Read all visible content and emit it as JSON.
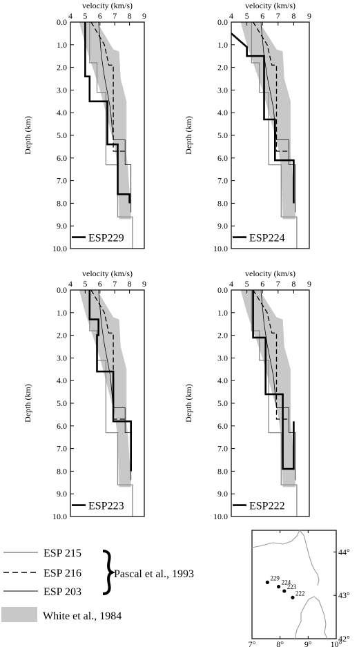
{
  "chart_data": [
    {
      "type": "line",
      "station": "ESP229",
      "xlabel": "velocity (km/s)",
      "ylabel": "Depth (km)",
      "xlim": [
        4,
        9
      ],
      "ylim": [
        0,
        10
      ],
      "x_ticks": [
        "4",
        "5",
        "6",
        "7",
        "8",
        "9"
      ],
      "y_ticks": [
        "0.0",
        "1.0",
        "2.0",
        "3.0",
        "4.0",
        "5.0",
        "6.0",
        "7.0",
        "8.0",
        "9.0",
        "10.0"
      ],
      "series": [
        {
          "name": "ESP229",
          "style": "thick",
          "points": [
            [
              5.0,
              0
            ],
            [
              5.0,
              2.4
            ],
            [
              5.3,
              2.4
            ],
            [
              5.3,
              3.5
            ],
            [
              6.5,
              3.5
            ],
            [
              6.5,
              5.4
            ],
            [
              7.2,
              5.4
            ],
            [
              7.2,
              7.6
            ],
            [
              8.0,
              7.6
            ],
            [
              8.0,
              8.0
            ]
          ]
        },
        {
          "name": "ESP 215",
          "style": "gray",
          "points": [
            [
              5.3,
              0
            ],
            [
              5.3,
              1.8
            ],
            [
              5.8,
              1.8
            ],
            [
              5.8,
              3.1
            ],
            [
              6.4,
              3.1
            ],
            [
              6.4,
              6.3
            ],
            [
              7.2,
              6.3
            ],
            [
              7.2,
              8.6
            ],
            [
              8.2,
              8.6
            ],
            [
              8.2,
              10
            ]
          ]
        },
        {
          "name": "ESP 216",
          "style": "dashed",
          "points": [
            [
              5.4,
              0
            ],
            [
              6.3,
              1.0
            ],
            [
              6.6,
              1.9
            ],
            [
              6.9,
              1.9
            ],
            [
              6.9,
              5.7
            ],
            [
              7.7,
              5.7
            ]
          ]
        },
        {
          "name": "ESP 203",
          "style": "thin",
          "points": [
            [
              5.9,
              0
            ],
            [
              6.1,
              1.5
            ],
            [
              6.3,
              2.4
            ],
            [
              6.7,
              3.8
            ],
            [
              6.9,
              5.2
            ],
            [
              7.7,
              5.2
            ],
            [
              7.7,
              6.3
            ],
            [
              8.1,
              6.3
            ],
            [
              8.1,
              8.4
            ]
          ]
        }
      ],
      "band": {
        "left": [
          [
            4.6,
            0
          ],
          [
            5.0,
            1.0
          ],
          [
            5.5,
            2.0
          ],
          [
            6.0,
            3.0
          ],
          [
            6.6,
            4.5
          ],
          [
            7.0,
            5.5
          ],
          [
            7.2,
            6.5
          ],
          [
            7.3,
            8.7
          ],
          [
            7.6,
            8.7
          ]
        ],
        "right": [
          [
            5.8,
            0
          ],
          [
            6.9,
            1.2
          ],
          [
            7.3,
            1.3
          ],
          [
            7.4,
            2.5
          ],
          [
            7.6,
            3.0
          ],
          [
            7.8,
            3.5
          ],
          [
            7.8,
            5.8
          ],
          [
            7.9,
            6.5
          ],
          [
            8.0,
            7.5
          ],
          [
            8.1,
            8.0
          ],
          [
            8.1,
            8.7
          ]
        ]
      }
    },
    {
      "type": "line",
      "station": "ESP224",
      "xlabel": "velocity (km/s)",
      "ylabel": "Depth (km)",
      "xlim": [
        4,
        9
      ],
      "ylim": [
        0,
        10
      ],
      "x_ticks": [
        "4",
        "5",
        "6",
        "7",
        "8",
        "9"
      ],
      "y_ticks": [
        "0.0",
        "1.0",
        "2.0",
        "3.0",
        "4.0",
        "5.0",
        "6.0",
        "7.0",
        "8.0",
        "9.0",
        "10.0"
      ],
      "series": [
        {
          "name": "ESP224",
          "style": "thick",
          "points": [
            [
              4.0,
              0.5
            ],
            [
              5.0,
              1.1
            ],
            [
              5.0,
              1.5
            ],
            [
              6.1,
              1.5
            ],
            [
              6.1,
              4.3
            ],
            [
              6.8,
              4.3
            ],
            [
              6.8,
              6.1
            ],
            [
              8.0,
              6.1
            ],
            [
              8.0,
              8.0
            ]
          ]
        },
        {
          "name": "ESP 215",
          "style": "gray",
          "points": [
            [
              5.3,
              0
            ],
            [
              5.3,
              1.8
            ],
            [
              5.8,
              1.8
            ],
            [
              5.8,
              3.1
            ],
            [
              6.4,
              3.1
            ],
            [
              6.4,
              6.3
            ],
            [
              7.2,
              6.3
            ],
            [
              7.2,
              8.6
            ],
            [
              8.2,
              8.6
            ],
            [
              8.2,
              10
            ]
          ]
        },
        {
          "name": "ESP 216",
          "style": "dashed",
          "points": [
            [
              5.4,
              0
            ],
            [
              6.3,
              1.0
            ],
            [
              6.6,
              1.9
            ],
            [
              6.9,
              1.9
            ],
            [
              6.9,
              5.7
            ],
            [
              7.7,
              5.7
            ]
          ]
        },
        {
          "name": "ESP 203",
          "style": "thin",
          "points": [
            [
              5.9,
              0
            ],
            [
              6.1,
              1.5
            ],
            [
              6.3,
              2.4
            ],
            [
              6.7,
              3.8
            ],
            [
              6.9,
              5.2
            ],
            [
              7.7,
              5.2
            ],
            [
              7.7,
              6.3
            ],
            [
              8.1,
              6.3
            ],
            [
              8.1,
              8.4
            ]
          ]
        }
      ],
      "band": {
        "left": [
          [
            4.6,
            0
          ],
          [
            5.0,
            1.0
          ],
          [
            5.5,
            2.0
          ],
          [
            6.0,
            3.0
          ],
          [
            6.6,
            4.5
          ],
          [
            7.0,
            5.5
          ],
          [
            7.2,
            6.5
          ],
          [
            7.3,
            8.7
          ],
          [
            7.6,
            8.7
          ]
        ],
        "right": [
          [
            5.8,
            0
          ],
          [
            6.9,
            1.2
          ],
          [
            7.3,
            1.3
          ],
          [
            7.4,
            2.5
          ],
          [
            7.6,
            3.0
          ],
          [
            7.8,
            3.5
          ],
          [
            7.8,
            5.8
          ],
          [
            7.9,
            6.5
          ],
          [
            8.0,
            7.5
          ],
          [
            8.1,
            8.0
          ],
          [
            8.1,
            8.7
          ]
        ]
      }
    },
    {
      "type": "line",
      "station": "ESP223",
      "xlabel": "velocity (km/s)",
      "ylabel": "Depth (km)",
      "xlim": [
        4,
        9
      ],
      "ylim": [
        0,
        10
      ],
      "x_ticks": [
        "4",
        "5",
        "6",
        "7",
        "8",
        "9"
      ],
      "y_ticks": [
        "0.0",
        "1.0",
        "2.0",
        "3.0",
        "4.0",
        "5.0",
        "6.0",
        "7.0",
        "8.0",
        "9.0",
        "10.0"
      ],
      "series": [
        {
          "name": "ESP223",
          "style": "thick",
          "points": [
            [
              5.3,
              0
            ],
            [
              5.3,
              1.3
            ],
            [
              5.9,
              1.3
            ],
            [
              5.9,
              2.0
            ],
            [
              5.8,
              2.0
            ],
            [
              5.8,
              3.6
            ],
            [
              6.9,
              3.6
            ],
            [
              6.9,
              5.8
            ],
            [
              8.1,
              5.8
            ],
            [
              8.1,
              8.0
            ]
          ]
        },
        {
          "name": "ESP 215",
          "style": "gray",
          "points": [
            [
              5.3,
              0
            ],
            [
              5.3,
              1.8
            ],
            [
              5.8,
              1.8
            ],
            [
              5.8,
              3.1
            ],
            [
              6.4,
              3.1
            ],
            [
              6.4,
              6.3
            ],
            [
              7.2,
              6.3
            ],
            [
              7.2,
              8.6
            ],
            [
              8.2,
              8.6
            ],
            [
              8.2,
              10
            ]
          ]
        },
        {
          "name": "ESP 216",
          "style": "dashed",
          "points": [
            [
              5.4,
              0
            ],
            [
              6.3,
              1.0
            ],
            [
              6.6,
              1.9
            ],
            [
              6.9,
              1.9
            ],
            [
              6.9,
              5.7
            ],
            [
              7.7,
              5.7
            ]
          ]
        },
        {
          "name": "ESP 203",
          "style": "thin",
          "points": [
            [
              5.9,
              0
            ],
            [
              6.1,
              1.5
            ],
            [
              6.3,
              2.4
            ],
            [
              6.7,
              3.8
            ],
            [
              6.9,
              5.2
            ],
            [
              7.7,
              5.2
            ],
            [
              7.7,
              6.3
            ],
            [
              8.1,
              6.3
            ],
            [
              8.1,
              8.4
            ]
          ]
        }
      ],
      "band": {
        "left": [
          [
            4.6,
            0
          ],
          [
            5.0,
            1.0
          ],
          [
            5.5,
            2.0
          ],
          [
            6.0,
            3.0
          ],
          [
            6.6,
            4.5
          ],
          [
            7.0,
            5.5
          ],
          [
            7.2,
            6.5
          ],
          [
            7.3,
            8.7
          ],
          [
            7.6,
            8.7
          ]
        ],
        "right": [
          [
            5.8,
            0
          ],
          [
            6.9,
            1.2
          ],
          [
            7.3,
            1.3
          ],
          [
            7.4,
            2.5
          ],
          [
            7.6,
            3.0
          ],
          [
            7.8,
            3.5
          ],
          [
            7.8,
            5.8
          ],
          [
            7.9,
            6.5
          ],
          [
            8.0,
            7.5
          ],
          [
            8.1,
            8.0
          ],
          [
            8.1,
            8.7
          ]
        ]
      }
    },
    {
      "type": "line",
      "station": "ESP222",
      "xlabel": "velocity (km/s)",
      "ylabel": "Depth (km)",
      "xlim": [
        4,
        9
      ],
      "ylim": [
        0,
        10
      ],
      "x_ticks": [
        "4",
        "5",
        "6",
        "7",
        "8",
        "9"
      ],
      "y_ticks": [
        "0.0",
        "1.0",
        "2.0",
        "3.0",
        "4.0",
        "5.0",
        "6.0",
        "7.0",
        "8.0",
        "9.0",
        "10.0"
      ],
      "series": [
        {
          "name": "ESP222",
          "style": "thick",
          "points": [
            [
              5.4,
              0
            ],
            [
              5.4,
              2.1
            ],
            [
              6.2,
              2.1
            ],
            [
              6.2,
              4.6
            ],
            [
              7.3,
              4.6
            ],
            [
              7.3,
              7.9
            ],
            [
              8.0,
              7.9
            ],
            [
              8.0,
              5.8
            ]
          ]
        },
        {
          "name": "ESP 215",
          "style": "gray",
          "points": [
            [
              5.3,
              0
            ],
            [
              5.3,
              1.8
            ],
            [
              5.8,
              1.8
            ],
            [
              5.8,
              3.1
            ],
            [
              6.4,
              3.1
            ],
            [
              6.4,
              6.3
            ],
            [
              7.2,
              6.3
            ],
            [
              7.2,
              8.6
            ],
            [
              8.2,
              8.6
            ],
            [
              8.2,
              10
            ]
          ]
        },
        {
          "name": "ESP 216",
          "style": "dashed",
          "points": [
            [
              5.4,
              0
            ],
            [
              6.3,
              1.0
            ],
            [
              6.6,
              1.9
            ],
            [
              6.9,
              1.9
            ],
            [
              6.9,
              5.7
            ],
            [
              7.7,
              5.7
            ]
          ]
        },
        {
          "name": "ESP 203",
          "style": "thin",
          "points": [
            [
              5.9,
              0
            ],
            [
              6.1,
              1.5
            ],
            [
              6.3,
              2.4
            ],
            [
              6.7,
              3.8
            ],
            [
              6.9,
              5.2
            ],
            [
              7.7,
              5.2
            ],
            [
              7.7,
              6.3
            ],
            [
              8.1,
              6.3
            ],
            [
              8.1,
              8.4
            ]
          ]
        }
      ],
      "band": {
        "left": [
          [
            4.6,
            0
          ],
          [
            5.0,
            1.0
          ],
          [
            5.5,
            2.0
          ],
          [
            6.0,
            3.0
          ],
          [
            6.6,
            4.5
          ],
          [
            7.0,
            5.5
          ],
          [
            7.2,
            6.5
          ],
          [
            7.3,
            8.7
          ],
          [
            7.6,
            8.7
          ]
        ],
        "right": [
          [
            5.8,
            0
          ],
          [
            6.9,
            1.2
          ],
          [
            7.3,
            1.3
          ],
          [
            7.4,
            2.5
          ],
          [
            7.6,
            3.0
          ],
          [
            7.8,
            3.5
          ],
          [
            7.8,
            5.8
          ],
          [
            7.9,
            6.5
          ],
          [
            8.0,
            7.5
          ],
          [
            8.1,
            8.0
          ],
          [
            8.1,
            8.7
          ]
        ]
      }
    }
  ],
  "legend": {
    "esp215": "ESP 215",
    "esp216": "ESP 216",
    "esp203": "ESP 203",
    "pascal": "Pascal et al., 1993",
    "white": "White et al., 1984"
  },
  "map": {
    "lon_ticks": [
      "7°",
      "8°",
      "9°",
      "10°"
    ],
    "lat_ticks": [
      "44°",
      "43°",
      "42°"
    ],
    "stations": [
      {
        "label": "229",
        "lon": 7.55,
        "lat": 43.3
      },
      {
        "label": "224",
        "lon": 7.95,
        "lat": 43.2
      },
      {
        "label": "223",
        "lon": 8.15,
        "lat": 43.1
      },
      {
        "label": "222",
        "lon": 8.45,
        "lat": 42.95
      }
    ]
  },
  "colors": {
    "band": "#c8c8c8",
    "gray_line": "#888888",
    "thick_line": "#000000"
  }
}
